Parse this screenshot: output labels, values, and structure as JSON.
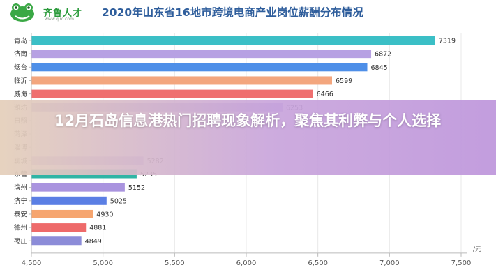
{
  "logo": {
    "name": "齐鲁人才",
    "url": "www.qlrc.com",
    "icon": "frog-logo-icon"
  },
  "overlay": {
    "title": "12月石岛信息港热门招聘现象解析，聚焦其利弊与个人选择"
  },
  "colors": {
    "title": "#2f5e9c",
    "axis": "#bbbbbb",
    "grid": "#e8e8e8",
    "overlay_left": "#e4cfba",
    "overlay_right": "#c0a0e0"
  },
  "chart_data": {
    "type": "bar",
    "orientation": "horizontal",
    "title": "2020年山东省16地市跨境电商产业岗位薪酬分布情况",
    "unit": "元",
    "xlim": [
      4500,
      7500
    ],
    "xticks": [
      4500,
      5000,
      5500,
      6000,
      6500,
      7000,
      7500
    ],
    "xtick_labels": [
      "4,500",
      "5,000",
      "5,500",
      "6,000",
      "6,500",
      "7,000",
      "7,500"
    ],
    "grid": true,
    "categories": [
      "青岛",
      "济南",
      "烟台",
      "临沂",
      "威海",
      "潍坊",
      "日照",
      "菏泽",
      "淄博",
      "聊城",
      "东营",
      "滨州",
      "济宁",
      "泰安",
      "德州",
      "枣庄"
    ],
    "values": [
      7319,
      6872,
      6845,
      6599,
      6466,
      6253,
      null,
      null,
      null,
      5282,
      5235,
      5152,
      5025,
      4930,
      4881,
      4849
    ],
    "bar_colors": [
      "#3bbfc6",
      "#b7a1e3",
      "#4e8fe8",
      "#f3a67e",
      "#ef6f6f",
      "#a08fd6",
      "#6f8fdc",
      "#8fbf7f",
      "#6fc0c4",
      "#b9a7e6",
      "#2fb5a5",
      "#aa94df",
      "#5b7fe4",
      "#f6a56f",
      "#ee6a6a",
      "#8c8cd8"
    ]
  }
}
